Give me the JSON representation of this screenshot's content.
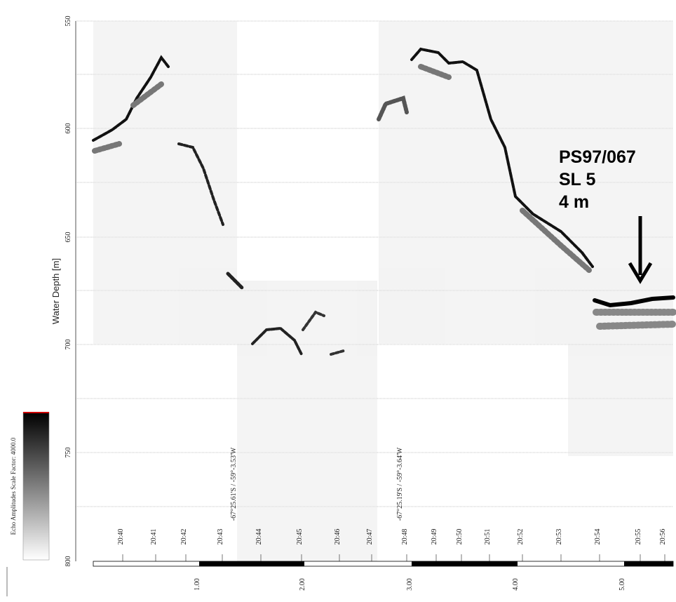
{
  "y_axis": {
    "label": "Water Depth [m]",
    "ticks": [
      "550",
      "600",
      "650",
      "700",
      "750",
      "800"
    ]
  },
  "time_labels": [
    "20:40",
    "20:41",
    "20:42",
    "20:43",
    "20:44",
    "20:45",
    "20:46",
    "20:47",
    "20:48",
    "20:49",
    "20:50",
    "20:51",
    "20:52",
    "20:53",
    "20:54",
    "20:55",
    "20:56"
  ],
  "distance_labels": [
    "1.00",
    "2.00",
    "3.00",
    "4.00",
    "5.00"
  ],
  "positions": [
    "-67°25.61'S / -59°-3.53'W",
    "-67°25.19'S / -59°-3.64'W"
  ],
  "annotation": {
    "station": "PS97/067",
    "gear": "SL 5",
    "length": "4 m"
  },
  "color_scale": {
    "label": "Echo Amplitudes  Scale Factor: 4000.0"
  }
}
